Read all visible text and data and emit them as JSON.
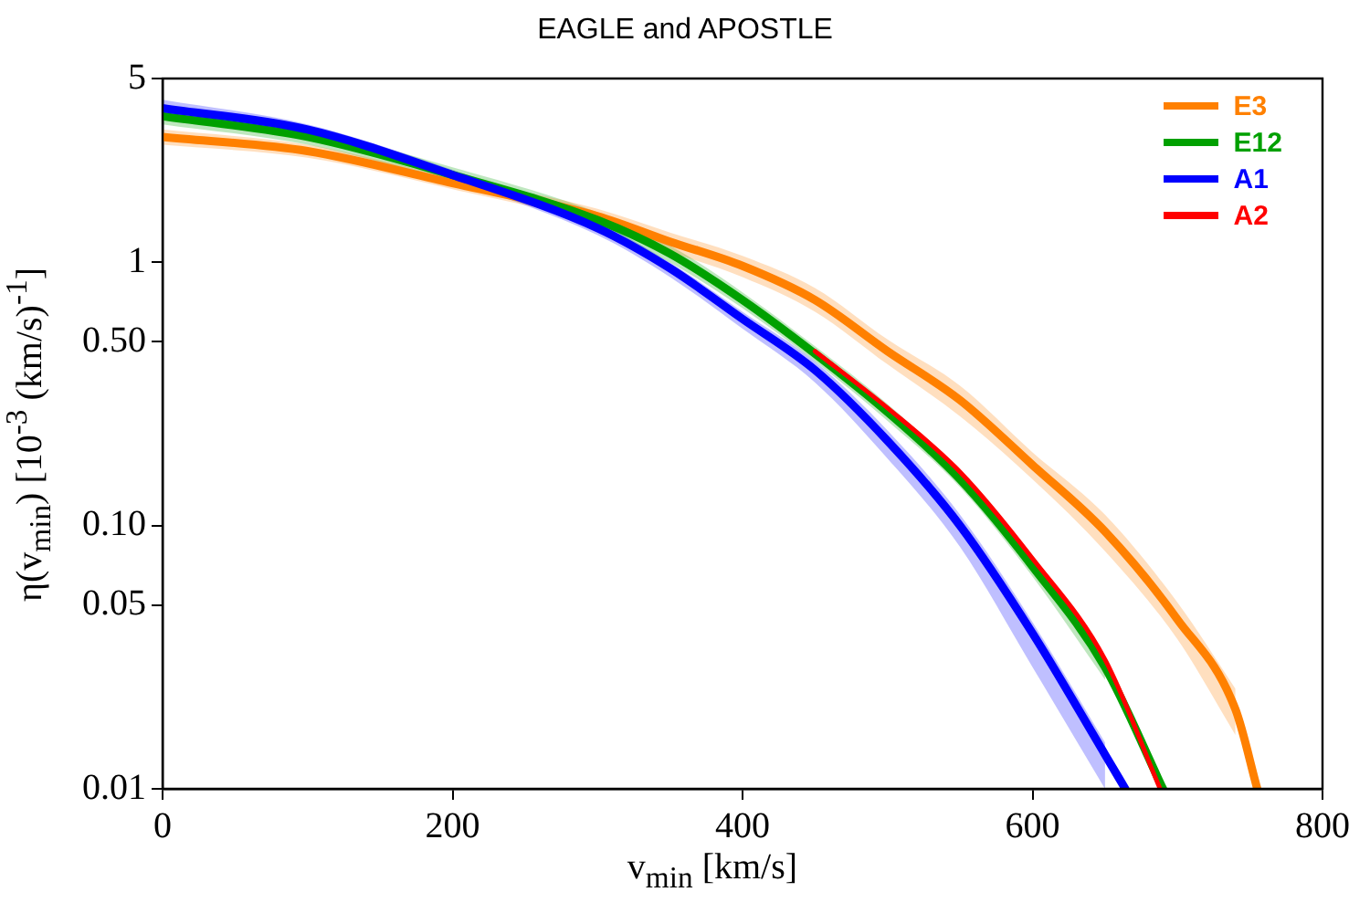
{
  "chart_data": {
    "type": "line",
    "title": "EAGLE and APOSTLE",
    "xlabel": "v$_{min}$ [km/s]",
    "ylabel": "η(v$_{min}$) [10$^{-3}$ (km/s)$^{-1}$]",
    "log": "y",
    "xlim": [
      0,
      800
    ],
    "ylim": [
      0.01,
      5
    ],
    "xticks": [
      0,
      200,
      400,
      600,
      800
    ],
    "yticks": [
      0.01,
      0.05,
      {
        "value": 0.1,
        "label": "0.10"
      },
      {
        "value": 0.5,
        "label": "0.50"
      },
      1,
      5
    ],
    "grid": false,
    "legend": "top right",
    "marker": "none",
    "line_style": "solid",
    "series": [
      {
        "name": "E3",
        "color": "#ff8000",
        "x": [
          0,
          100,
          200,
          300,
          350,
          400,
          450,
          500,
          550,
          600,
          650,
          700,
          740,
          755
        ],
        "values": [
          3.0,
          2.65,
          2.0,
          1.5,
          1.2,
          0.97,
          0.72,
          0.46,
          0.3,
          0.17,
          0.095,
          0.044,
          0.02,
          0.01
        ],
        "lower": [
          2.8,
          2.5,
          1.9,
          1.4,
          1.1,
          0.88,
          0.65,
          0.41,
          0.26,
          0.15,
          0.08,
          0.037,
          0.016,
          null
        ],
        "upper": [
          3.2,
          2.8,
          2.1,
          1.6,
          1.3,
          1.06,
          0.8,
          0.51,
          0.34,
          0.19,
          0.11,
          0.051,
          0.024,
          null
        ]
      },
      {
        "name": "E12",
        "color": "#00a000",
        "x": [
          0,
          100,
          200,
          300,
          350,
          400,
          450,
          500,
          550,
          600,
          650,
          690
        ],
        "values": [
          3.6,
          3.0,
          2.15,
          1.45,
          1.08,
          0.72,
          0.45,
          0.27,
          0.15,
          0.07,
          0.029,
          0.01
        ],
        "lower": [
          3.35,
          2.8,
          2.0,
          1.35,
          1.0,
          0.67,
          0.42,
          0.25,
          0.14,
          0.064,
          0.026,
          null
        ],
        "upper": [
          3.85,
          3.2,
          2.3,
          1.55,
          1.16,
          0.77,
          0.48,
          0.29,
          0.16,
          0.076,
          0.032,
          null
        ]
      },
      {
        "name": "A1",
        "color": "#0000ff",
        "x": [
          0,
          100,
          200,
          300,
          350,
          400,
          450,
          500,
          550,
          600,
          650,
          664
        ],
        "values": [
          3.86,
          3.2,
          2.15,
          1.35,
          0.95,
          0.61,
          0.39,
          0.21,
          0.1,
          0.039,
          0.0135,
          0.01
        ],
        "lower": [
          3.6,
          3.0,
          2.05,
          1.27,
          0.88,
          0.56,
          0.35,
          0.18,
          0.083,
          0.029,
          0.01,
          null
        ],
        "upper": [
          4.15,
          3.35,
          2.25,
          1.42,
          1.0,
          0.65,
          0.42,
          0.23,
          0.11,
          0.043,
          0.015,
          null
        ]
      },
      {
        "name": "A2",
        "color": "#ff0000",
        "x": [
          450,
          500,
          550,
          600,
          650,
          688
        ],
        "values": [
          0.46,
          0.28,
          0.16,
          0.075,
          0.031,
          0.01
        ]
      }
    ]
  }
}
